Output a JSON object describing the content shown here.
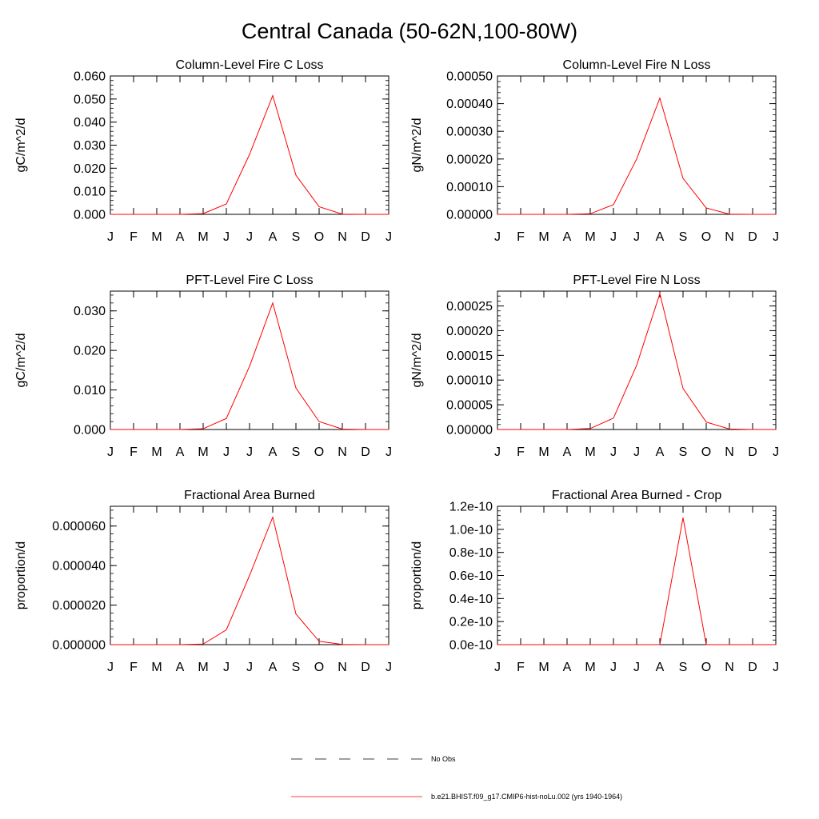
{
  "figure": {
    "title": "Central Canada (50-62N,100-80W)"
  },
  "chart_data": [
    {
      "type": "line",
      "title": "Column-Level Fire C Loss",
      "ylabel": "gC/m^2/d",
      "x": [
        "J",
        "F",
        "M",
        "A",
        "M",
        "J",
        "J",
        "A",
        "S",
        "O",
        "N",
        "D",
        "J"
      ],
      "ylim": [
        0,
        0.06
      ],
      "yticks": [
        0,
        0.01,
        0.02,
        0.03,
        0.04,
        0.05,
        0.06
      ],
      "ytick_labels": [
        "0.000",
        "0.010",
        "0.020",
        "0.030",
        "0.040",
        "0.050",
        "0.060"
      ],
      "series": [
        {
          "name": "b.e21.BHIST.f09_g17.CMIP6-hist-noLu.002 (yrs 1940-1964)",
          "color": "#ff0000",
          "values": [
            0,
            0,
            0,
            0,
            0.0003,
            0.0045,
            0.026,
            0.0515,
            0.017,
            0.0033,
            0.0001,
            0,
            0
          ]
        }
      ]
    },
    {
      "type": "line",
      "title": "Column-Level Fire N Loss",
      "ylabel": "gN/m^2/d",
      "x": [
        "J",
        "F",
        "M",
        "A",
        "M",
        "J",
        "J",
        "A",
        "S",
        "O",
        "N",
        "D",
        "J"
      ],
      "ylim": [
        0,
        0.0005
      ],
      "yticks": [
        0,
        0.0001,
        0.0002,
        0.0003,
        0.0004,
        0.0005
      ],
      "ytick_labels": [
        "0.00000",
        "0.00010",
        "0.00020",
        "0.00030",
        "0.00040",
        "0.00050"
      ],
      "series": [
        {
          "name": "b.e21.BHIST.f09_g17.CMIP6-hist-noLu.002 (yrs 1940-1964)",
          "color": "#ff0000",
          "values": [
            0,
            0,
            0,
            0,
            2e-06,
            3.5e-05,
            0.0002,
            0.00042,
            0.00013,
            2.3e-05,
            1e-06,
            0,
            0
          ]
        }
      ]
    },
    {
      "type": "line",
      "title": "PFT-Level Fire C Loss",
      "ylabel": "gC/m^2/d",
      "x": [
        "J",
        "F",
        "M",
        "A",
        "M",
        "J",
        "J",
        "A",
        "S",
        "O",
        "N",
        "D",
        "J"
      ],
      "ylim": [
        0,
        0.035
      ],
      "yticks": [
        0,
        0.01,
        0.02,
        0.03
      ],
      "ytick_labels": [
        "0.000",
        "0.010",
        "0.020",
        "0.030"
      ],
      "series": [
        {
          "name": "b.e21.BHIST.f09_g17.CMIP6-hist-noLu.002 (yrs 1940-1964)",
          "color": "#ff0000",
          "values": [
            0,
            0,
            0,
            0,
            0.0002,
            0.0028,
            0.016,
            0.032,
            0.0105,
            0.002,
            0.0001,
            0,
            0
          ]
        }
      ]
    },
    {
      "type": "line",
      "title": "PFT-Level Fire N Loss",
      "ylabel": "gN/m^2/d",
      "x": [
        "J",
        "F",
        "M",
        "A",
        "M",
        "J",
        "J",
        "A",
        "S",
        "O",
        "N",
        "D",
        "J"
      ],
      "ylim": [
        0,
        0.00028
      ],
      "yticks": [
        0,
        5e-05,
        0.0001,
        0.00015,
        0.0002,
        0.00025
      ],
      "ytick_labels": [
        "0.00000",
        "0.00005",
        "0.00010",
        "0.00015",
        "0.00020",
        "0.00025"
      ],
      "series": [
        {
          "name": "b.e21.BHIST.f09_g17.CMIP6-hist-noLu.002 (yrs 1940-1964)",
          "color": "#ff0000",
          "values": [
            0,
            0,
            0,
            0,
            2e-06,
            2.3e-05,
            0.00013,
            0.000275,
            8.3e-05,
            1.5e-05,
            1e-06,
            0,
            0
          ]
        }
      ]
    },
    {
      "type": "line",
      "title": "Fractional Area Burned",
      "ylabel": "proportion/d",
      "x": [
        "J",
        "F",
        "M",
        "A",
        "M",
        "J",
        "J",
        "A",
        "S",
        "O",
        "N",
        "D",
        "J"
      ],
      "ylim": [
        0,
        7e-05
      ],
      "yticks": [
        0,
        2e-05,
        4e-05,
        6e-05
      ],
      "ytick_labels": [
        "0.000000",
        "0.000020",
        "0.000040",
        "0.000060"
      ],
      "series": [
        {
          "name": "b.e21.BHIST.f09_g17.CMIP6-hist-noLu.002 (yrs 1940-1964)",
          "color": "#ff0000",
          "values": [
            0,
            0,
            0,
            0,
            3e-07,
            7.5e-06,
            3.5e-05,
            6.45e-05,
            1.55e-05,
            1.7e-06,
            1e-07,
            0,
            0
          ]
        }
      ]
    },
    {
      "type": "line",
      "title": "Fractional Area Burned - Crop",
      "ylabel": "proportion/d",
      "x": [
        "J",
        "F",
        "M",
        "A",
        "M",
        "J",
        "J",
        "A",
        "S",
        "O",
        "N",
        "D",
        "J"
      ],
      "ylim": [
        0,
        1.2e-10
      ],
      "yticks": [
        0,
        2e-11,
        4e-11,
        6e-11,
        8e-11,
        1e-10,
        1.2e-10
      ],
      "ytick_labels": [
        "0.0e-10",
        "0.2e-10",
        "0.4e-10",
        "0.6e-10",
        "0.8e-10",
        "1.0e-10",
        "1.2e-10"
      ],
      "series": [
        {
          "name": "b.e21.BHIST.f09_g17.CMIP6-hist-noLu.002 (yrs 1940-1964)",
          "color": "#ff0000",
          "values": [
            0,
            0,
            0,
            0,
            0,
            0,
            0,
            0,
            1.1e-10,
            0,
            0,
            0,
            0
          ]
        }
      ]
    }
  ],
  "legend": [
    {
      "label": "No Obs",
      "style": "dashed",
      "color": "#000000"
    },
    {
      "label": "b.e21.BHIST.f09_g17.CMIP6-hist-noLu.002 (yrs 1940-1964)",
      "style": "solid",
      "color": "#ff0000"
    }
  ]
}
